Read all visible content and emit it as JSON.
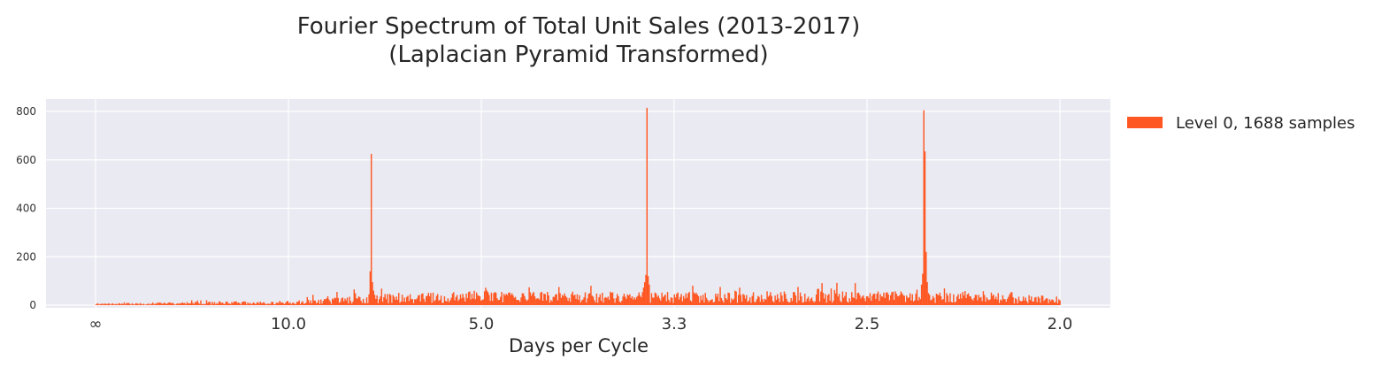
{
  "chart_data": {
    "type": "bar",
    "title": "Fourier Spectrum of Total Unit Sales (2013-2017)",
    "subtitle": "(Laplacian Pyramid Transformed)",
    "xlabel": "Days per Cycle",
    "ylabel": "",
    "x_axis": {
      "scale": "reciprocal (frequency in cycles per day)",
      "range_cycles_per_day": [
        0,
        0.5
      ],
      "tick_labels": [
        "∞",
        "10.0",
        "5.0",
        "3.3",
        "2.5",
        "2.0"
      ]
    },
    "ylim": [
      0,
      800
    ],
    "y_ticks": [
      "0",
      "200",
      "400",
      "600",
      "800"
    ],
    "grid": true,
    "legend_position": "outside-right",
    "series": [
      {
        "name": "Level 0, 1688 samples",
        "color": "#FF5722",
        "n_bins": 844,
        "noise_floor": {
          "x_cycles_per_day": [
            0.0,
            0.1,
            0.15,
            0.2,
            0.3,
            0.4,
            0.5
          ],
          "typical_magnitude": [
            5,
            12,
            30,
            38,
            35,
            40,
            25
          ],
          "max_magnitude": [
            10,
            30,
            85,
            80,
            90,
            95,
            50
          ]
        },
        "peaks": [
          {
            "days_per_cycle": 7.0,
            "values": [
              45,
              140,
              625,
              95,
              60
            ]
          },
          {
            "days_per_cycle": 3.5,
            "values": [
              95,
              125,
              815,
              120,
              85
            ]
          },
          {
            "days_per_cycle": 2.33,
            "values": [
              85,
              130,
              805,
              635,
              220,
              95
            ]
          }
        ]
      }
    ]
  }
}
